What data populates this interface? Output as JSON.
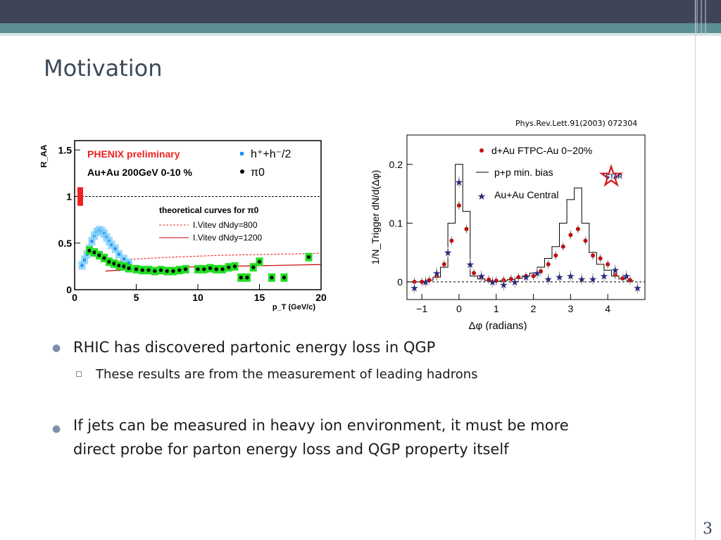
{
  "slide": {
    "title": "Motivation",
    "page_number": "3",
    "citation": "Phys.Rev.Lett.91(2003) 072304"
  },
  "bullets": [
    {
      "text": "RHIC has discovered partonic energy loss in QGP",
      "sub": "These results are from the measurement of leading hadrons"
    },
    {
      "text": "If jets can be measured in heavy ion environment, it must be more direct probe for parton energy loss and QGP property itself"
    }
  ],
  "bullet_lines": [
    "If jets can be measured in heavy ion environment, it must be more",
    "direct probe for parton energy loss and QGP property itself"
  ],
  "colors": {
    "header": "#3f4558",
    "accent": "#5c8f93",
    "title": "#3c4a5a"
  },
  "chart_data": [
    {
      "type": "scatter",
      "ylabel": "R_AA",
      "xlabel": "p_T (GeV/c)",
      "xlim": [
        0,
        20
      ],
      "ylim": [
        0,
        1.6
      ],
      "xticks": [
        "0",
        "5",
        "10",
        "15",
        "20"
      ],
      "yticks": [
        "0",
        "0.5",
        "1",
        "1.5"
      ],
      "labels": {
        "experiment": "PHENIX preliminary",
        "system": "Au+Au 200GeV 0-10 %",
        "curves_title": "theoretical curves for π0"
      },
      "legend": [
        "h⁺+h⁻/2",
        "π0",
        "I.Vitev dNdy=800",
        "I.Vitev dNdy=1200"
      ],
      "series": [
        {
          "name": "h⁺+h⁻/2",
          "color": "#1f8fff",
          "x": [
            0.6,
            0.8,
            1.0,
            1.2,
            1.4,
            1.6,
            1.8,
            2.0,
            2.2,
            2.4,
            2.6,
            2.8,
            3.0,
            3.3,
            3.6,
            4.0,
            4.4
          ],
          "y": [
            0.26,
            0.32,
            0.38,
            0.44,
            0.52,
            0.58,
            0.62,
            0.64,
            0.63,
            0.6,
            0.56,
            0.52,
            0.48,
            0.44,
            0.38,
            0.33,
            0.29
          ]
        },
        {
          "name": "π0",
          "color": "#000000",
          "x": [
            1.2,
            1.6,
            2.0,
            2.4,
            2.8,
            3.2,
            3.6,
            4.0,
            4.4,
            5.0,
            5.5,
            6.0,
            6.5,
            7.0,
            7.5,
            8.0,
            8.5,
            9.0,
            10.0,
            10.5,
            11.0,
            11.5,
            12.0,
            12.5,
            13.0,
            13.5,
            14.0,
            14.5,
            15.0,
            16.0,
            17.0,
            19.0
          ],
          "y": [
            0.42,
            0.4,
            0.37,
            0.34,
            0.3,
            0.28,
            0.26,
            0.25,
            0.23,
            0.22,
            0.21,
            0.21,
            0.2,
            0.21,
            0.2,
            0.2,
            0.21,
            0.22,
            0.22,
            0.22,
            0.23,
            0.22,
            0.22,
            0.24,
            0.25,
            0.13,
            0.13,
            0.24,
            0.3,
            0.13,
            0.13,
            0.35
          ]
        }
      ],
      "curves": [
        {
          "name": "I.Vitev dNdy=800",
          "style": "dashed",
          "x": [
            2.5,
            5,
            8,
            12,
            16,
            20
          ],
          "y": [
            0.3,
            0.33,
            0.35,
            0.37,
            0.38,
            0.39
          ]
        },
        {
          "name": "I.Vitev dNdy=1200",
          "style": "solid",
          "x": [
            2.5,
            5,
            8,
            12,
            16,
            20
          ],
          "y": [
            0.2,
            0.22,
            0.24,
            0.25,
            0.26,
            0.27
          ]
        }
      ],
      "reference_line": 1.0
    },
    {
      "type": "scatter",
      "ylabel": "1/N_Trigger dN/d(Δφ)",
      "xlabel": "Δφ (radians)",
      "xlim": [
        -1.4,
        5.0
      ],
      "ylim": [
        -0.03,
        0.25
      ],
      "xticks": [
        "−1",
        "0",
        "1",
        "2",
        "3",
        "4"
      ],
      "yticks": [
        "0",
        "0.1",
        "0.2"
      ],
      "labels": {
        "logo": "STAR"
      },
      "legend": [
        "d+Au FTPC-Au 0−20%",
        "p+p min. bias",
        "Au+Au Central"
      ],
      "series": [
        {
          "name": "d+Au FTPC-Au 0−20%",
          "color": "#c01010",
          "x": [
            -1.2,
            -1.0,
            -0.8,
            -0.6,
            -0.4,
            -0.2,
            0.0,
            0.2,
            0.4,
            0.6,
            0.8,
            1.0,
            1.2,
            1.4,
            1.6,
            1.8,
            2.0,
            2.2,
            2.4,
            2.6,
            2.8,
            3.0,
            3.2,
            3.4,
            3.6,
            3.8,
            4.0,
            4.2,
            4.4,
            4.6
          ],
          "y": [
            0.0,
            0.0,
            0.003,
            0.01,
            0.03,
            0.07,
            0.13,
            0.09,
            0.015,
            0.008,
            0.004,
            0.002,
            0.003,
            0.005,
            0.008,
            0.01,
            0.01,
            0.018,
            0.03,
            0.045,
            0.06,
            0.08,
            0.09,
            0.07,
            0.045,
            0.04,
            0.03,
            0.012,
            0.006,
            0.003
          ]
        },
        {
          "name": "p+p min. bias",
          "color": "#000000",
          "x": [
            -1.2,
            -1.0,
            -0.8,
            -0.6,
            -0.4,
            -0.2,
            0.0,
            0.2,
            0.4,
            0.6,
            0.8,
            1.0,
            1.2,
            1.4,
            1.6,
            1.8,
            2.0,
            2.2,
            2.4,
            2.6,
            2.8,
            3.0,
            3.2,
            3.4,
            3.6,
            3.8,
            4.0,
            4.2,
            4.4,
            4.6
          ],
          "y": [
            0.0,
            0.0,
            0.003,
            0.008,
            0.025,
            0.1,
            0.2,
            0.12,
            0.01,
            0.005,
            0.002,
            0.001,
            0.002,
            0.004,
            0.006,
            0.01,
            0.015,
            0.025,
            0.04,
            0.06,
            0.1,
            0.14,
            0.16,
            0.1,
            0.05,
            0.03,
            0.02,
            0.01,
            0.005,
            0.002
          ]
        },
        {
          "name": "Au+Au Central",
          "color": "#2a2a7a",
          "x": [
            -1.2,
            -0.9,
            -0.6,
            -0.3,
            0.0,
            0.3,
            0.6,
            0.9,
            1.2,
            1.5,
            1.8,
            2.1,
            2.4,
            2.7,
            3.0,
            3.3,
            3.6,
            3.9,
            4.2,
            4.5,
            4.8
          ],
          "y": [
            -0.01,
            0.0,
            0.015,
            0.05,
            0.17,
            0.03,
            0.01,
            0.0,
            -0.005,
            0.0,
            0.008,
            0.015,
            0.005,
            0.008,
            0.01,
            0.005,
            0.005,
            0.01,
            0.02,
            0.01,
            -0.01
          ]
        }
      ],
      "reference_line": 0
    }
  ]
}
